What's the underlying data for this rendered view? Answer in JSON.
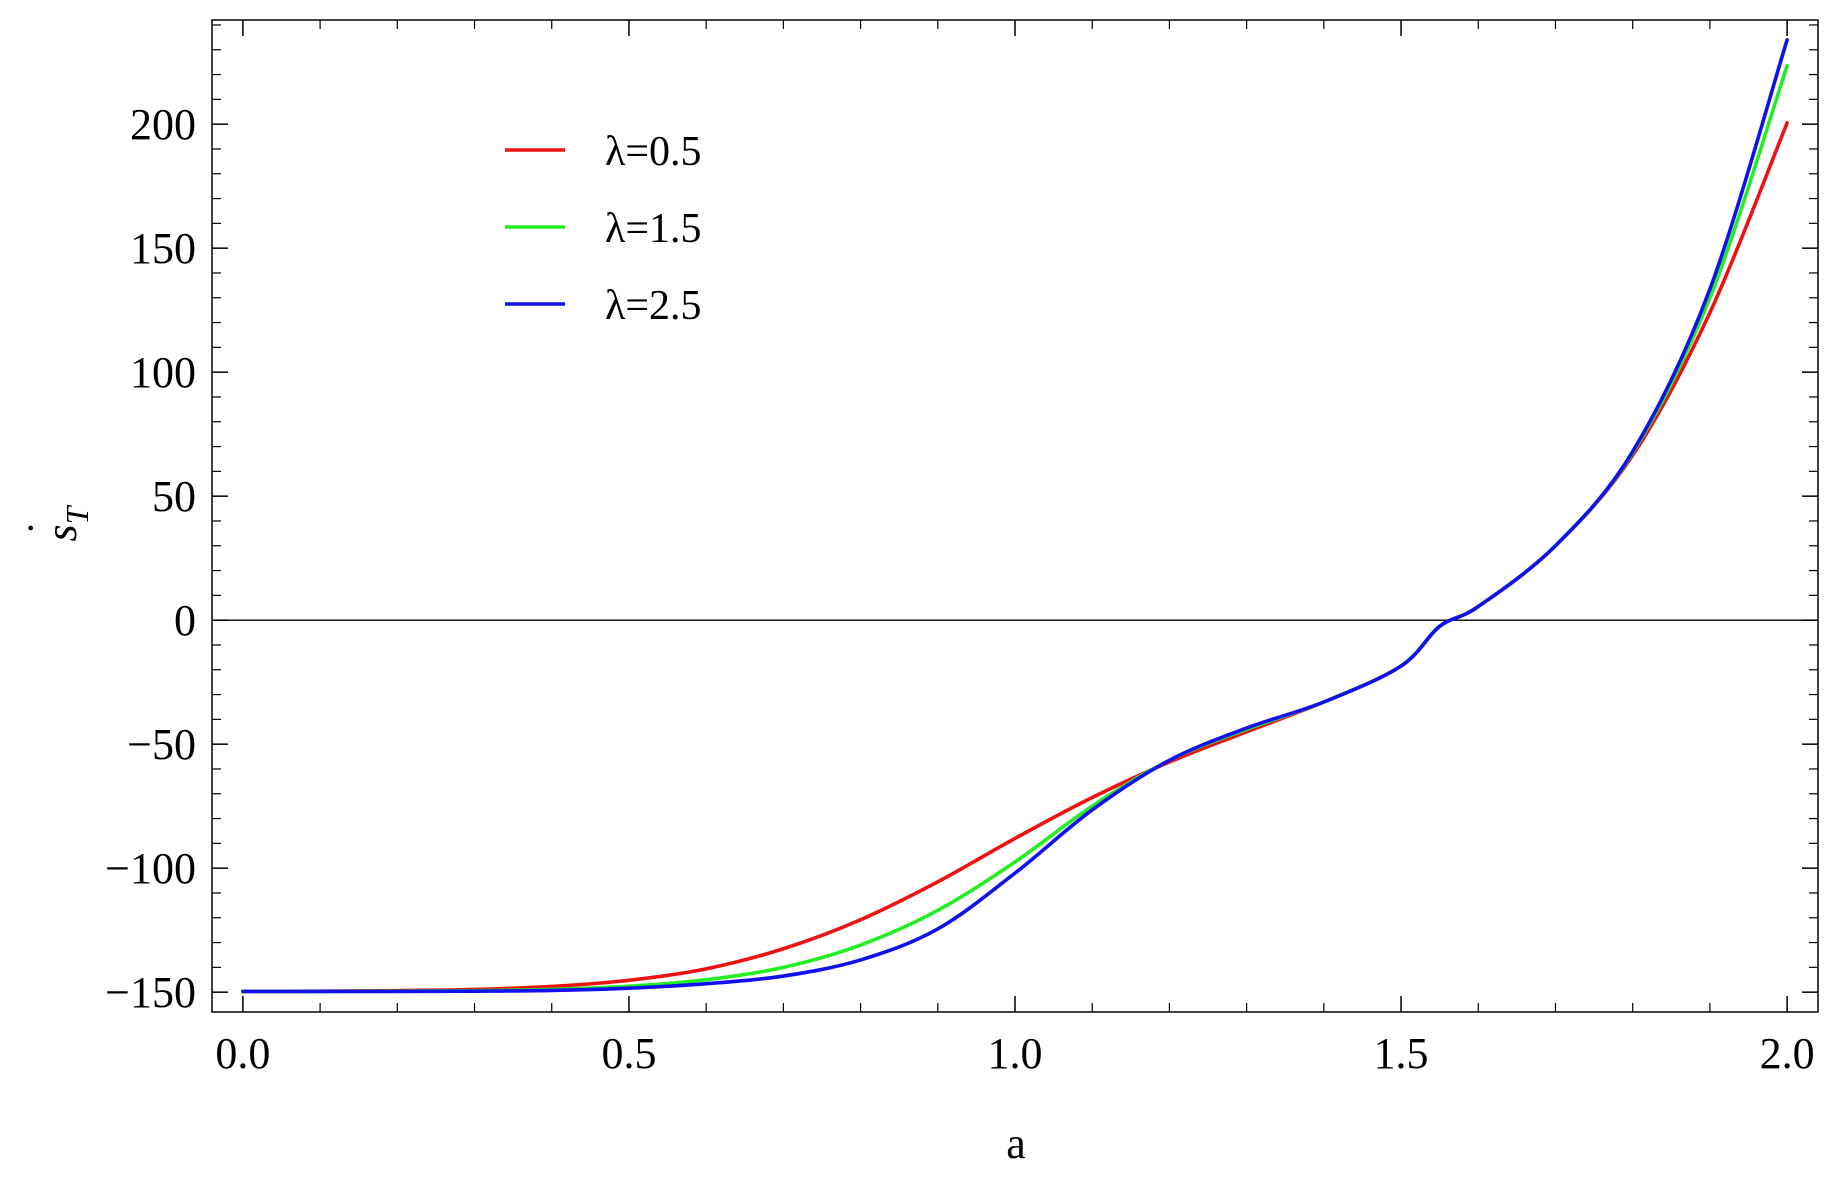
{
  "chart_data": {
    "type": "line",
    "xlabel": "a",
    "ylabel": "ṡ_T",
    "ylabel_parts": {
      "dot": "˙",
      "base": "s",
      "subscript": "T"
    },
    "xlim": [
      -0.04,
      2.04
    ],
    "ylim": [
      -158,
      242
    ],
    "x_ticks": [
      0.0,
      0.5,
      1.0,
      1.5,
      2.0
    ],
    "x_tick_labels": [
      "0.0",
      "0.5",
      "1.0",
      "1.5",
      "2.0"
    ],
    "y_ticks": [
      -150,
      -100,
      -50,
      0,
      50,
      100,
      150,
      200
    ],
    "y_tick_labels": [
      "−150",
      "−100",
      "−50",
      "0",
      "50",
      "100",
      "150",
      "200"
    ],
    "x_minor_step": 0.1,
    "y_minor_step": 10,
    "grid": false,
    "frame": true,
    "zero_line": true,
    "legend_position": "top-left",
    "series": [
      {
        "name": "λ=0.5",
        "color": "#ee1111",
        "x": [
          0.0,
          0.1,
          0.2,
          0.3,
          0.4,
          0.5,
          0.6,
          0.7,
          0.8,
          0.9,
          1.0,
          1.1,
          1.2,
          1.3,
          1.4,
          1.5,
          1.55,
          1.6,
          1.7,
          1.8,
          1.9,
          2.0
        ],
        "y": [
          -149.7,
          -149.6,
          -149.4,
          -148.9,
          -147.7,
          -145.2,
          -140.6,
          -132.5,
          -120.8,
          -105.5,
          -88.0,
          -71.5,
          -57.2,
          -45.0,
          -33.0,
          -18.5,
          -2.5,
          5.5,
          30.0,
          66.5,
          124.0,
          200.5
        ]
      },
      {
        "name": "λ=1.5",
        "color": "#22ee22",
        "x": [
          0.0,
          0.1,
          0.2,
          0.3,
          0.4,
          0.5,
          0.6,
          0.7,
          0.8,
          0.9,
          1.0,
          1.1,
          1.2,
          1.3,
          1.4,
          1.5,
          1.55,
          1.6,
          1.7,
          1.8,
          1.9,
          2.0
        ],
        "y": [
          -149.7,
          -149.7,
          -149.6,
          -149.4,
          -148.9,
          -147.6,
          -145.0,
          -140.0,
          -131.0,
          -117.0,
          -97.5,
          -75.0,
          -56.5,
          -44.0,
          -33.0,
          -18.5,
          -2.5,
          5.5,
          30.0,
          67.5,
          130.0,
          223.5
        ]
      },
      {
        "name": "λ=2.5",
        "color": "#1111ee",
        "x": [
          0.0,
          0.1,
          0.2,
          0.3,
          0.4,
          0.5,
          0.6,
          0.7,
          0.8,
          0.9,
          1.0,
          1.1,
          1.2,
          1.3,
          1.4,
          1.5,
          1.55,
          1.6,
          1.7,
          1.8,
          1.9,
          2.0
        ],
        "y": [
          -149.7,
          -149.7,
          -149.7,
          -149.6,
          -149.3,
          -148.4,
          -146.6,
          -143.5,
          -137.0,
          -124.5,
          -102.0,
          -76.5,
          -56.5,
          -43.5,
          -33.0,
          -18.5,
          -2.5,
          5.5,
          30.0,
          68.0,
          133.5,
          234.0
        ]
      }
    ]
  }
}
